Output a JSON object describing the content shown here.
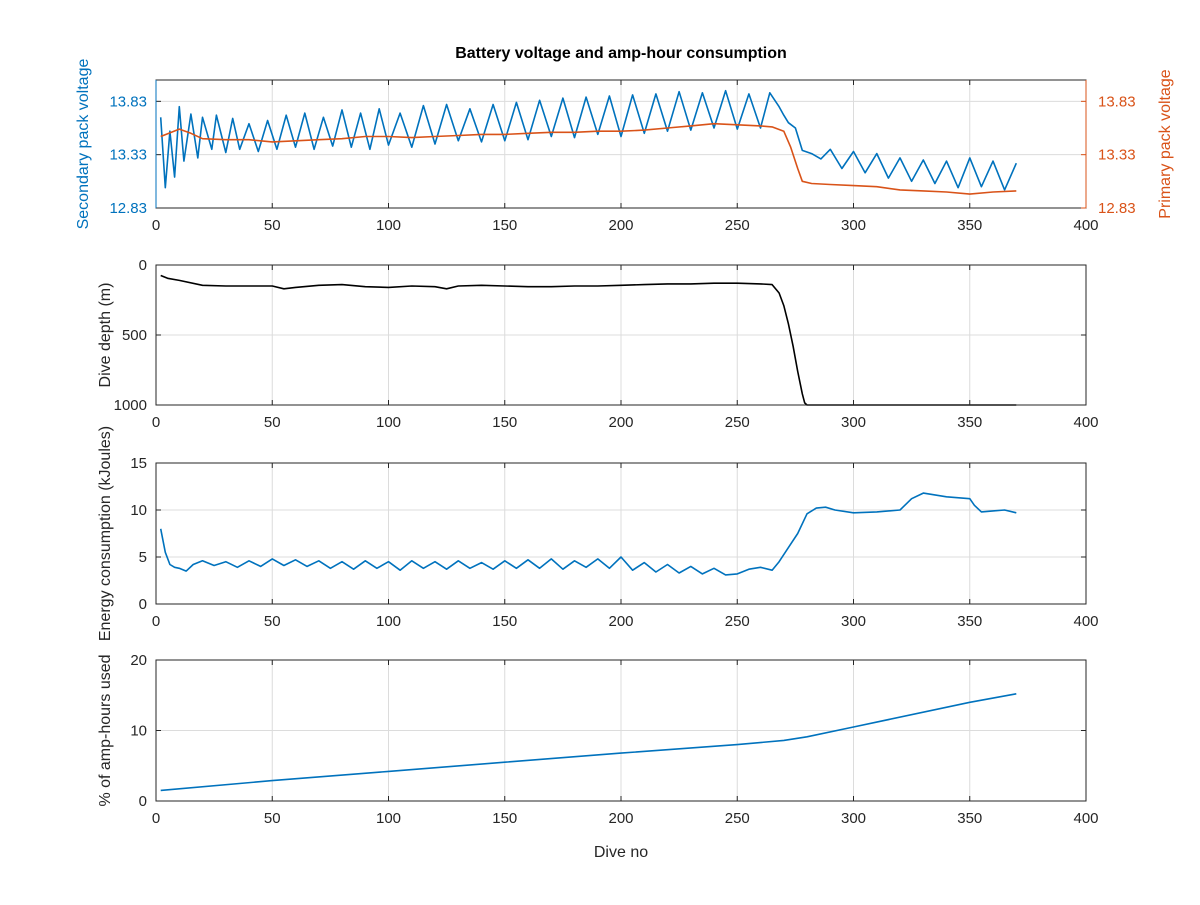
{
  "colors": {
    "blue": "#0072BD",
    "orange": "#D95319",
    "black": "#000000",
    "axis": "#262626",
    "grid": "#dcdcdc"
  },
  "chart_data": [
    {
      "type": "line",
      "title": "Battery voltage and amp-hour consumption",
      "xlabel": "",
      "xlim": [
        0,
        400
      ],
      "x_ticks": [
        "0",
        "50",
        "100",
        "150",
        "200",
        "250",
        "300",
        "350",
        "400"
      ],
      "grid": true,
      "ylabel_left": "Secondary pack voltage",
      "ylabel_right": "Primary pack voltage",
      "ylim_left": [
        12.83,
        14.03
      ],
      "ylim_right": [
        12.83,
        14.03
      ],
      "y_ticks_left": [
        "12.83",
        "13.33",
        "13.83"
      ],
      "y_ticks_right": [
        "12.83",
        "13.33",
        "13.83"
      ],
      "series": [
        {
          "axis": "left",
          "color": "#0072BD",
          "x": [
            2,
            4,
            6,
            8,
            10,
            12,
            15,
            18,
            20,
            24,
            26,
            30,
            33,
            36,
            40,
            44,
            48,
            52,
            56,
            60,
            64,
            68,
            72,
            76,
            80,
            84,
            88,
            92,
            96,
            100,
            105,
            110,
            115,
            120,
            125,
            130,
            135,
            140,
            145,
            150,
            155,
            160,
            165,
            170,
            175,
            180,
            185,
            190,
            195,
            200,
            205,
            210,
            215,
            220,
            225,
            230,
            235,
            240,
            245,
            250,
            255,
            260,
            264,
            268,
            270,
            272,
            275,
            278,
            282,
            286,
            290,
            295,
            300,
            305,
            310,
            315,
            320,
            325,
            330,
            335,
            340,
            345,
            350,
            355,
            360,
            365,
            370
          ],
          "values": [
            13.68,
            13.02,
            13.55,
            13.12,
            13.78,
            13.27,
            13.71,
            13.3,
            13.68,
            13.38,
            13.7,
            13.35,
            13.67,
            13.38,
            13.62,
            13.36,
            13.65,
            13.38,
            13.7,
            13.4,
            13.72,
            13.38,
            13.68,
            13.41,
            13.75,
            13.4,
            13.72,
            13.38,
            13.76,
            13.42,
            13.72,
            13.4,
            13.79,
            13.43,
            13.8,
            13.46,
            13.76,
            13.45,
            13.8,
            13.46,
            13.82,
            13.47,
            13.84,
            13.5,
            13.86,
            13.49,
            13.87,
            13.52,
            13.88,
            13.5,
            13.89,
            13.53,
            13.9,
            13.55,
            13.92,
            13.56,
            13.91,
            13.58,
            13.93,
            13.57,
            13.9,
            13.58,
            13.91,
            13.78,
            13.7,
            13.63,
            13.58,
            13.37,
            13.34,
            13.29,
            13.38,
            13.2,
            13.36,
            13.16,
            13.34,
            13.11,
            13.3,
            13.08,
            13.28,
            13.06,
            13.27,
            13.02,
            13.3,
            13.03,
            13.27,
            13.0,
            13.25
          ]
        },
        {
          "axis": "right",
          "color": "#D95319",
          "x": [
            2,
            10,
            15,
            20,
            30,
            40,
            50,
            60,
            70,
            80,
            90,
            100,
            110,
            120,
            130,
            140,
            150,
            160,
            170,
            180,
            190,
            200,
            210,
            220,
            230,
            240,
            250,
            260,
            265,
            270,
            273,
            276,
            278,
            282,
            290,
            300,
            310,
            320,
            330,
            340,
            350,
            360,
            370
          ],
          "values": [
            13.5,
            13.57,
            13.53,
            13.48,
            13.47,
            13.47,
            13.45,
            13.46,
            13.47,
            13.48,
            13.5,
            13.5,
            13.49,
            13.5,
            13.51,
            13.52,
            13.52,
            13.53,
            13.54,
            13.54,
            13.55,
            13.55,
            13.56,
            13.58,
            13.6,
            13.62,
            13.61,
            13.6,
            13.59,
            13.55,
            13.4,
            13.2,
            13.08,
            13.06,
            13.05,
            13.04,
            13.03,
            13.0,
            12.99,
            12.98,
            12.96,
            12.98,
            12.99
          ]
        }
      ]
    },
    {
      "type": "line",
      "title": "",
      "xlabel": "",
      "ylabel": "Dive depth (m)",
      "xlim": [
        0,
        400
      ],
      "ylim": [
        0,
        1000
      ],
      "y_reversed": true,
      "x_ticks": [
        "0",
        "50",
        "100",
        "150",
        "200",
        "250",
        "300",
        "350",
        "400"
      ],
      "y_ticks": [
        "0",
        "500",
        "1000"
      ],
      "grid": true,
      "series": [
        {
          "color": "#000000",
          "x": [
            2,
            5,
            10,
            20,
            30,
            40,
            50,
            55,
            60,
            70,
            80,
            90,
            100,
            110,
            120,
            125,
            130,
            140,
            150,
            160,
            170,
            180,
            190,
            200,
            210,
            220,
            230,
            240,
            250,
            260,
            265,
            268,
            270,
            272,
            274,
            276,
            278,
            279,
            280,
            290,
            300,
            320,
            340,
            360,
            370
          ],
          "values": [
            75,
            95,
            110,
            145,
            150,
            150,
            150,
            170,
            160,
            145,
            140,
            155,
            160,
            150,
            155,
            170,
            150,
            145,
            150,
            155,
            155,
            150,
            150,
            145,
            140,
            135,
            135,
            130,
            130,
            135,
            140,
            200,
            290,
            420,
            580,
            760,
            920,
            985,
            1000,
            1000,
            1000,
            1000,
            1000,
            1000,
            1000
          ]
        }
      ]
    },
    {
      "type": "line",
      "title": "",
      "xlabel": "",
      "ylabel": "Energy consumption (kJoules)",
      "xlim": [
        0,
        400
      ],
      "ylim": [
        0,
        15
      ],
      "x_ticks": [
        "0",
        "50",
        "100",
        "150",
        "200",
        "250",
        "300",
        "350",
        "400"
      ],
      "y_ticks": [
        "0",
        "5",
        "10",
        "15"
      ],
      "grid": true,
      "series": [
        {
          "color": "#0072BD",
          "x": [
            2,
            4,
            6,
            8,
            10,
            13,
            16,
            20,
            25,
            30,
            35,
            40,
            45,
            50,
            55,
            60,
            65,
            70,
            75,
            80,
            85,
            90,
            95,
            100,
            105,
            110,
            115,
            120,
            125,
            130,
            135,
            140,
            145,
            150,
            155,
            160,
            165,
            170,
            175,
            180,
            185,
            190,
            195,
            200,
            205,
            210,
            215,
            220,
            225,
            230,
            235,
            240,
            245,
            250,
            255,
            260,
            265,
            268,
            272,
            276,
            280,
            284,
            288,
            292,
            300,
            310,
            320,
            325,
            330,
            340,
            350,
            352,
            355,
            360,
            365,
            370
          ],
          "values": [
            8.0,
            5.5,
            4.2,
            3.9,
            3.8,
            3.5,
            4.2,
            4.6,
            4.1,
            4.5,
            3.9,
            4.6,
            4.0,
            4.8,
            4.1,
            4.7,
            4.0,
            4.6,
            3.8,
            4.5,
            3.7,
            4.6,
            3.8,
            4.5,
            3.6,
            4.6,
            3.8,
            4.5,
            3.7,
            4.6,
            3.8,
            4.4,
            3.7,
            4.6,
            3.8,
            4.7,
            3.8,
            4.8,
            3.7,
            4.6,
            3.9,
            4.8,
            3.8,
            5.0,
            3.6,
            4.4,
            3.4,
            4.2,
            3.3,
            4.0,
            3.2,
            3.8,
            3.1,
            3.2,
            3.7,
            3.9,
            3.6,
            4.5,
            6.0,
            7.5,
            9.6,
            10.2,
            10.3,
            10.0,
            9.7,
            9.8,
            10.0,
            11.2,
            11.8,
            11.4,
            11.2,
            10.5,
            9.8,
            9.9,
            10.0,
            9.7
          ]
        }
      ]
    },
    {
      "type": "line",
      "title": "",
      "xlabel": "Dive no",
      "ylabel": "% of amp-hours used",
      "xlim": [
        0,
        400
      ],
      "ylim": [
        0,
        20
      ],
      "x_ticks": [
        "0",
        "50",
        "100",
        "150",
        "200",
        "250",
        "300",
        "350",
        "400"
      ],
      "y_ticks": [
        "0",
        "10",
        "20"
      ],
      "grid": true,
      "series": [
        {
          "color": "#0072BD",
          "x": [
            2,
            50,
            100,
            150,
            200,
            250,
            270,
            280,
            300,
            350,
            370
          ],
          "values": [
            1.5,
            2.9,
            4.2,
            5.5,
            6.8,
            8.0,
            8.6,
            9.1,
            10.5,
            14.0,
            15.2
          ]
        }
      ]
    }
  ]
}
